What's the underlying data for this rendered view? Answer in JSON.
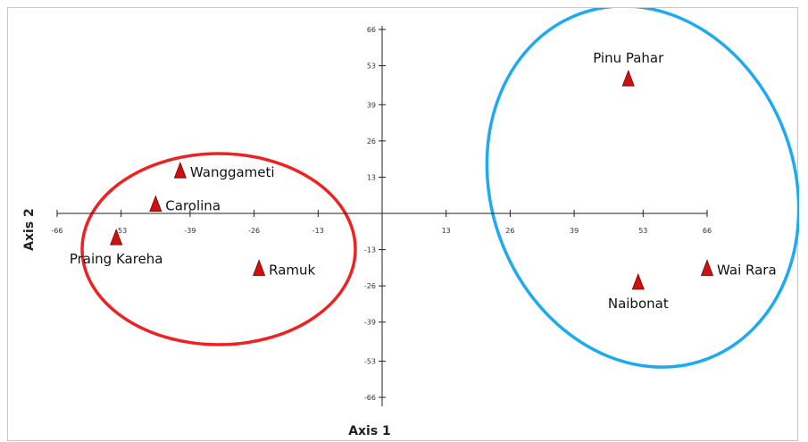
{
  "chart_data": {
    "type": "scatter",
    "title": "",
    "xlabel": "Axis 1",
    "ylabel": "Axis 2",
    "xlim": [
      -66,
      66
    ],
    "ylim": [
      -66,
      66
    ],
    "x_ticks": [
      -66,
      -53,
      -39,
      -26,
      -13,
      13,
      26,
      39,
      53,
      66
    ],
    "x_tick_labels": [
      "-66",
      "-53",
      "-39",
      "-26",
      "-13",
      "13",
      "26",
      "39",
      "53",
      "66"
    ],
    "y_ticks": [
      66,
      53,
      39,
      26,
      13,
      -13,
      -26,
      -39,
      -53,
      -66
    ],
    "y_tick_labels": [
      "66",
      "53",
      "39",
      "26",
      "13",
      "-13",
      "-26",
      "-39",
      "-53",
      "-66"
    ],
    "grid": false,
    "points": [
      {
        "label": "Pinu Pahar",
        "x": 50,
        "y": 48,
        "label_side": "above"
      },
      {
        "label": "Wai Rara",
        "x": 66,
        "y": -20,
        "label_side": "right"
      },
      {
        "label": "Naibonat",
        "x": 52,
        "y": -25,
        "label_side": "below"
      },
      {
        "label": "Wanggameti",
        "x": -41,
        "y": 15,
        "label_side": "right"
      },
      {
        "label": "Carolina",
        "x": -46,
        "y": 3,
        "label_side": "right"
      },
      {
        "label": "Praing Kareha",
        "x": -54,
        "y": -9,
        "label_side": "below"
      },
      {
        "label": "Ramuk",
        "x": -25,
        "y": -20,
        "label_side": "right"
      }
    ],
    "marker": {
      "shape": "triangle",
      "color": "#cc1111"
    },
    "groups": [
      {
        "members": [
          "Wanggameti",
          "Carolina",
          "Praing Kareha",
          "Ramuk"
        ],
        "color": "#ee2222"
      },
      {
        "members": [
          "Pinu Pahar",
          "Wai Rara",
          "Naibonat"
        ],
        "color": "#1eaaee"
      }
    ]
  }
}
